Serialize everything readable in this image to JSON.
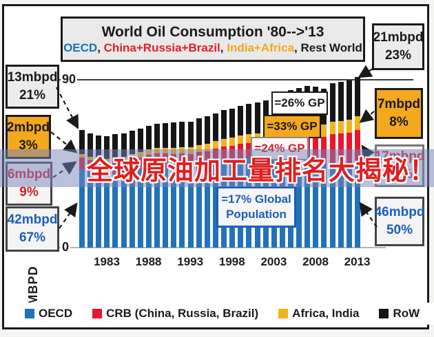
{
  "title_box": {
    "line1": "World Oil Consumption '80-->'13",
    "subtitle_segments": [
      {
        "text": "OECD",
        "color": "#1b6fc4"
      },
      {
        "text": ", ",
        "color": "#1a1a1a"
      },
      {
        "text": "China+Russia+Brazil",
        "color": "#e31e26"
      },
      {
        "text": ", ",
        "color": "#1a1a1a"
      },
      {
        "text": "India+Africa",
        "color": "#f2a81c"
      },
      {
        "text": ", ",
        "color": "#1a1a1a"
      },
      {
        "text": "Rest World",
        "color": "#1a1a1a"
      }
    ]
  },
  "overlay_banner": {
    "text": "全球原油加工量排名大揭秘！",
    "text_color": "#e01f1f",
    "band_color": "rgba(118,132,186,0.50)"
  },
  "axis": {
    "y_top_label": "90",
    "y_bottom_label": "0",
    "y_unit": "MBPD",
    "x_ticks": [
      "1983",
      "1988",
      "1993",
      "1998",
      "2003",
      "2008",
      "2013"
    ]
  },
  "left_stats": [
    {
      "value": "13mbpd",
      "pct": "21%",
      "bg": "#ececec",
      "fg": "#1a1a1a"
    },
    {
      "value": "2mbpd",
      "pct": "3%",
      "bg": "#f3a81d",
      "fg": "#1a1a1a"
    },
    {
      "value": "6mbpd",
      "pct": "9%",
      "bg": "#f8f4f2",
      "fg": "#d2202a"
    },
    {
      "value": "42mbpd",
      "pct": "67%",
      "bg": "#f4f4f4",
      "fg": "#1b5eb8"
    }
  ],
  "right_stats": [
    {
      "value": "21mbpd",
      "pct": "23%",
      "bg": "#ececec",
      "fg": "#1a1a1a"
    },
    {
      "value": "7mbpd",
      "pct": "8%",
      "bg": "#f3a81d",
      "fg": "#1a1a1a"
    },
    {
      "value": "17mbpd",
      "pct": "19%",
      "bg": "#f8f4f2",
      "fg": "#d2202a"
    },
    {
      "value": "46mbpd",
      "pct": "50%",
      "bg": "#f4f4f4",
      "fg": "#1b5eb8"
    }
  ],
  "annotations": [
    {
      "text": "=26% GP",
      "bg": "#ffffff",
      "fg": "#1a1a1a"
    },
    {
      "text": "=33% GP",
      "bg": "#f3a81d",
      "fg": "#1a1a1a"
    },
    {
      "text": "=24% GP",
      "bg": "#fdf6f6",
      "fg": "#d2202a"
    },
    {
      "line1": "=17% Global",
      "line2": "Population",
      "bg": "#f6f6f6",
      "fg": "#1b5eb8",
      "border": "#1b5eb8"
    }
  ],
  "legend": {
    "items": [
      {
        "label": "OECD",
        "color": "#2272b8"
      },
      {
        "label": "CRB (China, Russia, Brazil)",
        "color": "#e8152d"
      },
      {
        "label": "Africa, India",
        "color": "#f0b41e"
      },
      {
        "label": "RoW",
        "color": "#141414"
      }
    ]
  },
  "chart_data": {
    "type": "bar",
    "stacked": true,
    "title": "World Oil Consumption '80-->'13",
    "ylabel": "MBPD",
    "ylim": [
      0,
      95
    ],
    "gridline_y": 90,
    "x_tick_labels": [
      "1983",
      "1988",
      "1993",
      "1998",
      "2003",
      "2008",
      "2013"
    ],
    "years": [
      1980,
      1981,
      1982,
      1983,
      1984,
      1985,
      1986,
      1987,
      1988,
      1989,
      1990,
      1991,
      1992,
      1993,
      1994,
      1995,
      1996,
      1997,
      1998,
      1999,
      2000,
      2001,
      2002,
      2003,
      2004,
      2005,
      2006,
      2007,
      2008,
      2009,
      2010,
      2011,
      2012,
      2013
    ],
    "series": [
      {
        "name": "OECD",
        "color": "#2272b8",
        "values": [
          42,
          40.5,
          39.5,
          39,
          39.7,
          39.8,
          40.8,
          41.5,
          42.6,
          43,
          42.9,
          42.8,
          43.3,
          43.4,
          44.3,
          44.8,
          45.8,
          46.6,
          46.8,
          47.6,
          47.9,
          47.8,
          47.6,
          48,
          48.7,
          49,
          48.7,
          48.5,
          47.1,
          45.1,
          45.6,
          45.1,
          44.9,
          46
        ]
      },
      {
        "name": "CRB (China, Russia, Brazil)",
        "color": "#e8152d",
        "values": [
          6,
          6,
          6,
          6.1,
          6.2,
          6.3,
          6.6,
          6.8,
          7.1,
          7.3,
          7.3,
          7.2,
          6.9,
          6.7,
          6.6,
          6.8,
          7,
          7.3,
          7.5,
          7.8,
          8.1,
          8.5,
          9,
          9.8,
          10.9,
          11.5,
          12.2,
          13,
          13.6,
          14.2,
          15.2,
          15.8,
          16.4,
          17
        ]
      },
      {
        "name": "Africa, India",
        "color": "#f2b31c",
        "values": [
          2,
          2.1,
          2.2,
          2.3,
          2.4,
          2.5,
          2.6,
          2.7,
          2.9,
          3,
          3.2,
          3.3,
          3.4,
          3.5,
          3.7,
          3.9,
          4,
          4.2,
          4.4,
          4.5,
          4.7,
          4.8,
          5,
          5.2,
          5.4,
          5.6,
          5.8,
          6,
          6.2,
          6.4,
          6.6,
          6.7,
          6.9,
          7
        ]
      },
      {
        "name": "RoW",
        "color": "#161616",
        "values": [
          13,
          12.4,
          12.3,
          12.1,
          12.2,
          12.3,
          12.3,
          12.5,
          12.6,
          12.9,
          13.2,
          13.7,
          13.7,
          13.8,
          14.3,
          14.5,
          15,
          15.5,
          15.4,
          15.9,
          16.2,
          16.5,
          16.9,
          16.8,
          17.6,
          17.9,
          18.5,
          19,
          19.1,
          19.2,
          20.5,
          20.9,
          21,
          21
        ]
      }
    ],
    "endpoint_breakdown": {
      "1980": {
        "RoW": "13mbpd 21%",
        "Africa+India": "2mbpd 3%",
        "CRB": "6mbpd 9%",
        "OECD": "42mbpd 67%"
      },
      "2013": {
        "RoW": "21mbpd 23%",
        "Africa+India": "7mbpd 8%",
        "CRB": "17mbpd 19%",
        "OECD": "46mbpd 50%"
      }
    }
  }
}
